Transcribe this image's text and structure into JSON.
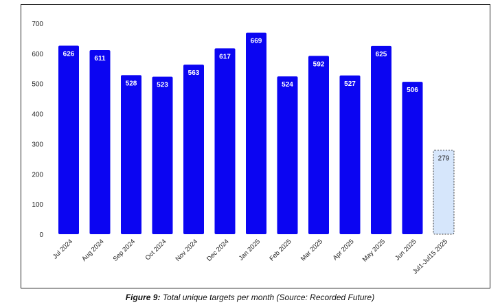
{
  "caption": {
    "lead": "Figure 9:",
    "text": "Total unique targets per month (Source: Recorded Future)"
  },
  "colors": {
    "bar": "#0b05f2",
    "partial_bar_fill": "#d6e6fb",
    "partial_bar_border": "#333333",
    "bar_label": "#ffffff",
    "partial_label": "#222222",
    "axis_text": "#222222"
  },
  "chart_data": {
    "type": "bar",
    "categories": [
      "Jul 2024",
      "Aug 2024",
      "Sep 2024",
      "Oct 2024",
      "Nov 2024",
      "Dec 2024",
      "Jan 2025",
      "Feb 2025",
      "Mar 2025",
      "Apr 2025",
      "May 2025",
      "Jun 2025",
      "Jul1-Jul15 2025"
    ],
    "values": [
      626,
      611,
      528,
      523,
      563,
      617,
      669,
      524,
      592,
      527,
      625,
      506,
      279
    ],
    "data_labels": [
      "626",
      "611",
      "528",
      "523",
      "563",
      "617",
      "669",
      "524",
      "592",
      "527",
      "625",
      "506",
      "279"
    ],
    "highlight_last_partial": true,
    "yticks": [
      "0",
      "100",
      "200",
      "300",
      "400",
      "500",
      "600",
      "700"
    ],
    "ylim": [
      0,
      700
    ],
    "grid": false,
    "legend": "none",
    "xlabel": "",
    "ylabel": "",
    "title": ""
  }
}
